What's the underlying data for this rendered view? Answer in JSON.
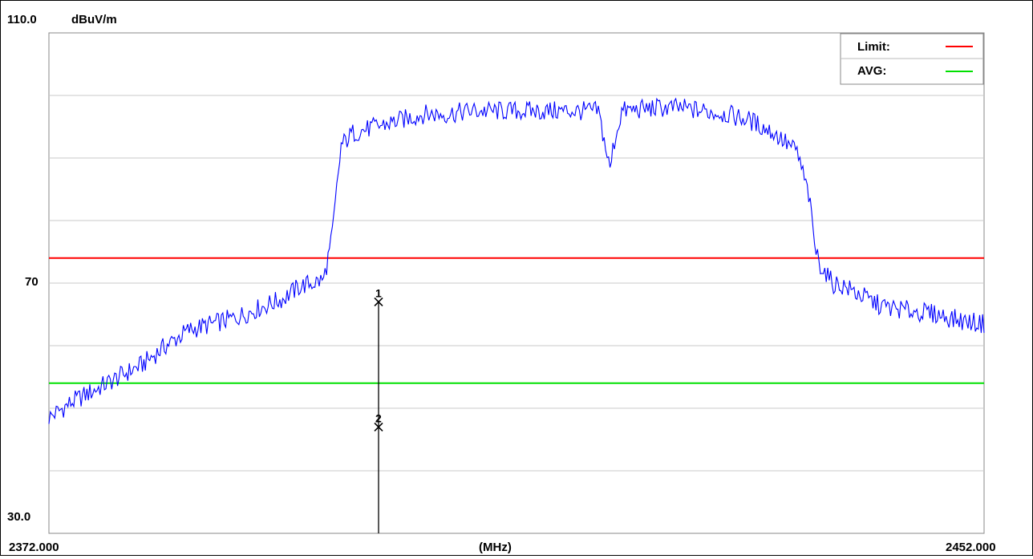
{
  "chart_data": {
    "type": "line",
    "title": "",
    "ylabel": "dBuV/m",
    "xlabel": "(MHz)",
    "xlim": [
      2372.0,
      2452.0
    ],
    "ylim": [
      30.0,
      110.0
    ],
    "x_tick_labels": [
      "2372.000",
      "(MHz)",
      "2452.000"
    ],
    "y_tick_labels": [
      "110.0",
      "70",
      "30.0"
    ],
    "y_gridlines": [
      40,
      50,
      60,
      70,
      80,
      90,
      100
    ],
    "grid": true,
    "legend_position": "top-right",
    "legend": [
      {
        "label": "Limit:",
        "color": "#ff0000"
      },
      {
        "label": "AVG:",
        "color": "#00e000"
      }
    ],
    "limit_lines": [
      {
        "name": "Limit:",
        "y": 74.0,
        "color": "#ff0000"
      },
      {
        "name": "AVG:",
        "y": 54.0,
        "color": "#00e000"
      }
    ],
    "series": [
      {
        "color": "#0000ff",
        "x": [
          2372.0,
          2374.0,
          2376.0,
          2378.0,
          2380.0,
          2382.0,
          2384.0,
          2386.0,
          2388.0,
          2390.0,
          2392.0,
          2393.5,
          2394.5,
          2395.5,
          2396.2,
          2397.0,
          2398.0,
          2400.0,
          2402.0,
          2404.0,
          2406.0,
          2408.0,
          2410.0,
          2412.0,
          2414.0,
          2416.0,
          2419.0,
          2419.7,
          2420.0,
          2420.3,
          2421.0,
          2424.0,
          2426.0,
          2428.0,
          2430.0,
          2432.0,
          2434.0,
          2436.0,
          2437.0,
          2437.6,
          2438.0,
          2439.0,
          2440.0,
          2441.0,
          2442.0,
          2443.0,
          2444.0,
          2446.0,
          2448.0,
          2450.0,
          2452.0
        ],
        "values": [
          48.5,
          51.0,
          53.0,
          55.0,
          57.0,
          60.0,
          62.5,
          63.5,
          64.5,
          66.0,
          67.5,
          69.5,
          70.0,
          70.5,
          77.0,
          92.0,
          94.0,
          95.0,
          96.0,
          97.0,
          97.0,
          97.5,
          97.5,
          97.5,
          97.5,
          97.5,
          97.5,
          91.0,
          88.0,
          92.0,
          97.5,
          98.0,
          98.0,
          97.5,
          97.0,
          96.0,
          94.0,
          91.0,
          84.0,
          75.0,
          73.0,
          70.0,
          69.5,
          68.5,
          67.5,
          66.5,
          66.0,
          65.5,
          65.0,
          64.0,
          63.5
        ]
      }
    ],
    "markers": [
      {
        "label": "1",
        "x": 2400.2,
        "y": 67.0
      },
      {
        "label": "2",
        "x": 2400.2,
        "y": 47.0
      }
    ],
    "marker_line_x": 2400.2
  }
}
